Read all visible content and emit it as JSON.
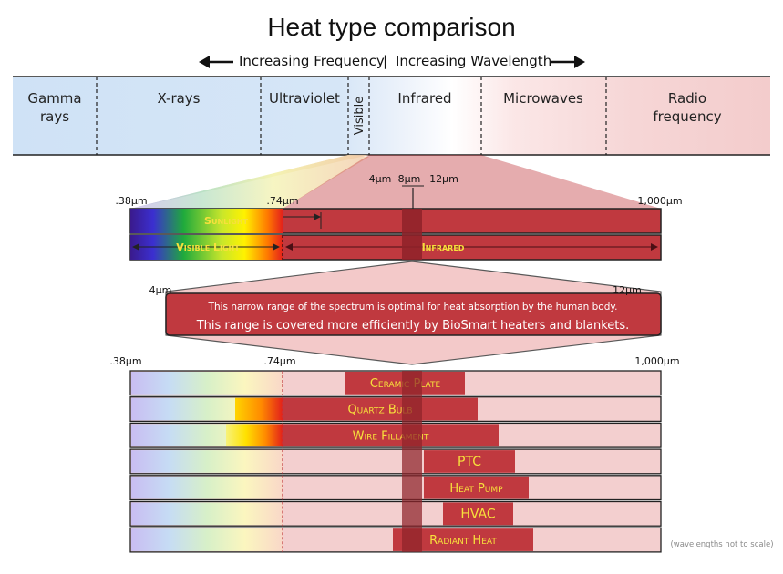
{
  "title": "Heat type comparison",
  "direction": {
    "left_label": "Increasing Frequency",
    "separator": "|",
    "right_label": "Increasing Wavelength"
  },
  "spectrum_bands": [
    {
      "id": "gamma",
      "label_lines": [
        "Gamma",
        "rays"
      ]
    },
    {
      "id": "xrays",
      "label_lines": [
        "X-rays"
      ]
    },
    {
      "id": "uv",
      "label_lines": [
        "Ultraviolet"
      ]
    },
    {
      "id": "visible",
      "label_lines": [
        "Visible"
      ]
    },
    {
      "id": "infrared",
      "label_lines": [
        "Infrared"
      ]
    },
    {
      "id": "microwaves",
      "label_lines": [
        "Microwaves"
      ]
    },
    {
      "id": "radio",
      "label_lines": [
        "Radio",
        "frequency"
      ]
    }
  ],
  "zoom_ticks": {
    "t4": "4µm",
    "t8": "8µm",
    "t12": "12µm"
  },
  "upper_scale": {
    "min": ".38µm",
    "mid": ".74µm",
    "max": "1,000µm"
  },
  "upper_bars": {
    "sunlight": "Sunlight",
    "visible_light": "Visible Light",
    "infrared": "Infrared"
  },
  "callout": {
    "left": "4µm",
    "right": "12µm",
    "line1": "This narrow range of the spectrum is optimal for heat absorption by the human body.",
    "line2": "This range is covered more efficiently by BioSmart heaters and blankets."
  },
  "lower_scale": {
    "min": ".38µm",
    "mid": ".74µm",
    "max": "1,000µm"
  },
  "heat_sources": [
    {
      "label": "Ceramic Plate",
      "smallcaps": true
    },
    {
      "label": "Quartz Bulb",
      "smallcaps": true
    },
    {
      "label": "Wire Fillament",
      "smallcaps": true
    },
    {
      "label": "PTC",
      "smallcaps": false
    },
    {
      "label": "Heat Pump",
      "smallcaps": true
    },
    {
      "label": "HVAC",
      "smallcaps": false
    },
    {
      "label": "Radiant Heat",
      "smallcaps": true
    }
  ],
  "footnote": "(wavelengths not to scale)",
  "colors": {
    "ir_red": "#c0393f",
    "ir_pale": "#f3cfcf",
    "label_yellow": "#f7e03c",
    "xray_blue": "#cfe2f6",
    "zoom_band": "#8e2229"
  }
}
